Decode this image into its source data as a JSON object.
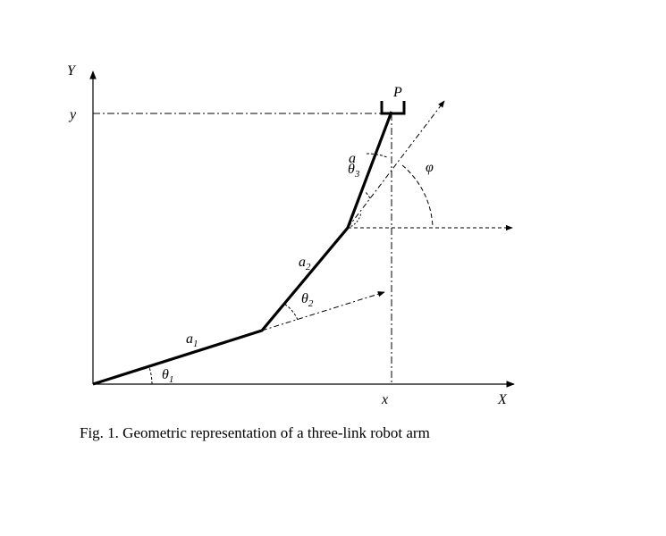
{
  "axes": {
    "y_axis": "Y",
    "x_axis": "X",
    "y_coord": "y",
    "x_coord": "x"
  },
  "end_effector": "P",
  "links": [
    {
      "name": "a",
      "sub": "1"
    },
    {
      "name": "a",
      "sub": "2"
    },
    {
      "name": "a"
    }
  ],
  "angles": [
    {
      "name": "θ",
      "sub": "1"
    },
    {
      "name": "θ",
      "sub": "2"
    },
    {
      "name": "θ",
      "sub": "3"
    },
    {
      "name": "φ"
    }
  ],
  "caption": "Fig. 1. Geometric representation of a three-link robot arm"
}
